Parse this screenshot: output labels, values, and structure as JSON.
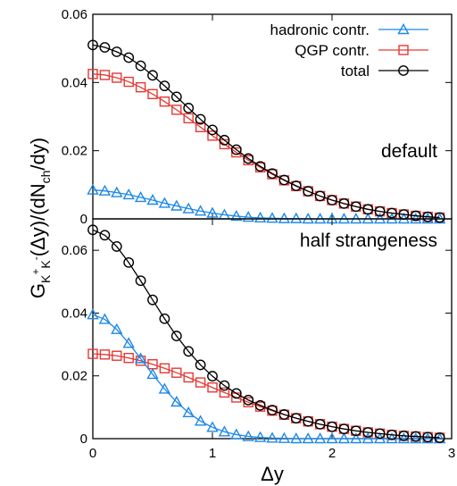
{
  "chart_data": {
    "type": "line",
    "xlabel": "Δy",
    "ylabel": "G_{K+K-}(Δy)/(dN_ch/dy)",
    "xlim": [
      0,
      3
    ],
    "x_ticks": [
      0,
      1,
      2,
      3
    ],
    "x_tick_labels": [
      "0",
      "1",
      "2",
      "3"
    ],
    "grid": false,
    "legend_position": "top-right",
    "panels": [
      {
        "annotation": "default",
        "ylim": [
          0,
          0.06
        ],
        "y_ticks": [
          0,
          0.02,
          0.04,
          0.06
        ],
        "y_tick_labels": [
          "0",
          "0.02",
          "0.04",
          "0.06"
        ],
        "legend": true,
        "series": [
          {
            "name": "hadronic contr.",
            "color": "#1e88e5",
            "marker": "triangle",
            "x": [
              0.0,
              0.1,
              0.2,
              0.3,
              0.4,
              0.5,
              0.6,
              0.7,
              0.8,
              0.9,
              1.0,
              1.1,
              1.2,
              1.3,
              1.4,
              1.5,
              1.6,
              1.7,
              1.8,
              1.9,
              2.0,
              2.1,
              2.2,
              2.3,
              2.4,
              2.5,
              2.6,
              2.7,
              2.8,
              2.9
            ],
            "values": [
              0.0085,
              0.0082,
              0.0077,
              0.0071,
              0.0063,
              0.0055,
              0.0046,
              0.0038,
              0.003,
              0.0023,
              0.0017,
              0.0012,
              0.0008,
              0.0005,
              0.0003,
              0.0002,
              0.0001,
              0.0001,
              0.0,
              0.0,
              0.0,
              0.0,
              0.0,
              0.0,
              0.0,
              0.0,
              0.0,
              0.0,
              0.0,
              0.0
            ]
          },
          {
            "name": "QGP contr.",
            "color": "#e53935",
            "marker": "square",
            "x": [
              0.0,
              0.1,
              0.2,
              0.3,
              0.4,
              0.5,
              0.6,
              0.7,
              0.8,
              0.9,
              1.0,
              1.1,
              1.2,
              1.3,
              1.4,
              1.5,
              1.6,
              1.7,
              1.8,
              1.9,
              2.0,
              2.1,
              2.2,
              2.3,
              2.4,
              2.5,
              2.6,
              2.7,
              2.8,
              2.9
            ],
            "values": [
              0.0425,
              0.0422,
              0.0414,
              0.0402,
              0.0386,
              0.0366,
              0.0344,
              0.032,
              0.0295,
              0.0269,
              0.0244,
              0.0219,
              0.0195,
              0.0172,
              0.0151,
              0.0131,
              0.0113,
              0.0096,
              0.0081,
              0.0067,
              0.0055,
              0.0045,
              0.0036,
              0.0028,
              0.0022,
              0.0017,
              0.0013,
              0.0009,
              0.0006,
              0.0004
            ]
          },
          {
            "name": "total",
            "color": "#000000",
            "marker": "circle",
            "x": [
              0.0,
              0.1,
              0.2,
              0.3,
              0.4,
              0.5,
              0.6,
              0.7,
              0.8,
              0.9,
              1.0,
              1.1,
              1.2,
              1.3,
              1.4,
              1.5,
              1.6,
              1.7,
              1.8,
              1.9,
              2.0,
              2.1,
              2.2,
              2.3,
              2.4,
              2.5,
              2.6,
              2.7,
              2.8,
              2.9
            ],
            "values": [
              0.051,
              0.0503,
              0.049,
              0.0473,
              0.0449,
              0.0421,
              0.039,
              0.0358,
              0.0325,
              0.0292,
              0.0261,
              0.0231,
              0.0203,
              0.0177,
              0.0154,
              0.0133,
              0.0114,
              0.0097,
              0.0081,
              0.0067,
              0.0055,
              0.0045,
              0.0036,
              0.0028,
              0.0022,
              0.0017,
              0.0013,
              0.0009,
              0.0006,
              0.0004
            ]
          }
        ]
      },
      {
        "annotation": "half strangeness",
        "ylim": [
          0,
          0.07
        ],
        "y_ticks": [
          0,
          0.02,
          0.04,
          0.06
        ],
        "y_tick_labels": [
          "0",
          "0.02",
          "0.04",
          "0.06"
        ],
        "legend": false,
        "series": [
          {
            "name": "hadronic contr.",
            "color": "#1e88e5",
            "marker": "triangle",
            "x": [
              0.0,
              0.1,
              0.2,
              0.3,
              0.4,
              0.5,
              0.6,
              0.7,
              0.8,
              0.9,
              1.0,
              1.1,
              1.2,
              1.3,
              1.4,
              1.5,
              1.6,
              1.7,
              1.8,
              1.9,
              2.0,
              2.1,
              2.2,
              2.3,
              2.4,
              2.5,
              2.6,
              2.7,
              2.8,
              2.9
            ],
            "values": [
              0.0395,
              0.038,
              0.0348,
              0.0304,
              0.0255,
              0.0205,
              0.0158,
              0.0117,
              0.0083,
              0.0056,
              0.0036,
              0.0022,
              0.0013,
              0.0007,
              0.0004,
              0.0002,
              0.0001,
              0.0,
              0.0,
              0.0,
              0.0,
              0.0,
              0.0,
              0.0,
              0.0,
              0.0,
              0.0,
              0.0,
              0.0,
              0.0
            ]
          },
          {
            "name": "QGP contr.",
            "color": "#e53935",
            "marker": "square",
            "x": [
              0.0,
              0.1,
              0.2,
              0.3,
              0.4,
              0.5,
              0.6,
              0.7,
              0.8,
              0.9,
              1.0,
              1.1,
              1.2,
              1.3,
              1.4,
              1.5,
              1.6,
              1.7,
              1.8,
              1.9,
              2.0,
              2.1,
              2.2,
              2.3,
              2.4,
              2.5,
              2.6,
              2.7,
              2.8,
              2.9
            ],
            "values": [
              0.027,
              0.0268,
              0.0264,
              0.0257,
              0.0248,
              0.0237,
              0.0224,
              0.021,
              0.0195,
              0.0179,
              0.0163,
              0.0147,
              0.0131,
              0.0116,
              0.0102,
              0.0089,
              0.0076,
              0.0065,
              0.0055,
              0.0046,
              0.0038,
              0.0031,
              0.0025,
              0.002,
              0.0016,
              0.0012,
              0.0009,
              0.0007,
              0.0005,
              0.0003
            ]
          },
          {
            "name": "total",
            "color": "#000000",
            "marker": "circle",
            "x": [
              0.0,
              0.1,
              0.2,
              0.3,
              0.4,
              0.5,
              0.6,
              0.7,
              0.8,
              0.9,
              1.0,
              1.1,
              1.2,
              1.3,
              1.4,
              1.5,
              1.6,
              1.7,
              1.8,
              1.9,
              2.0,
              2.1,
              2.2,
              2.3,
              2.4,
              2.5,
              2.6,
              2.7,
              2.8,
              2.9
            ],
            "values": [
              0.0665,
              0.0648,
              0.0612,
              0.0561,
              0.0503,
              0.0442,
              0.0382,
              0.0327,
              0.0278,
              0.0235,
              0.0199,
              0.0169,
              0.0144,
              0.0123,
              0.0106,
              0.0091,
              0.0077,
              0.0065,
              0.0055,
              0.0046,
              0.0038,
              0.0031,
              0.0025,
              0.002,
              0.0016,
              0.0012,
              0.0009,
              0.0007,
              0.0005,
              0.0003
            ]
          }
        ]
      }
    ]
  }
}
